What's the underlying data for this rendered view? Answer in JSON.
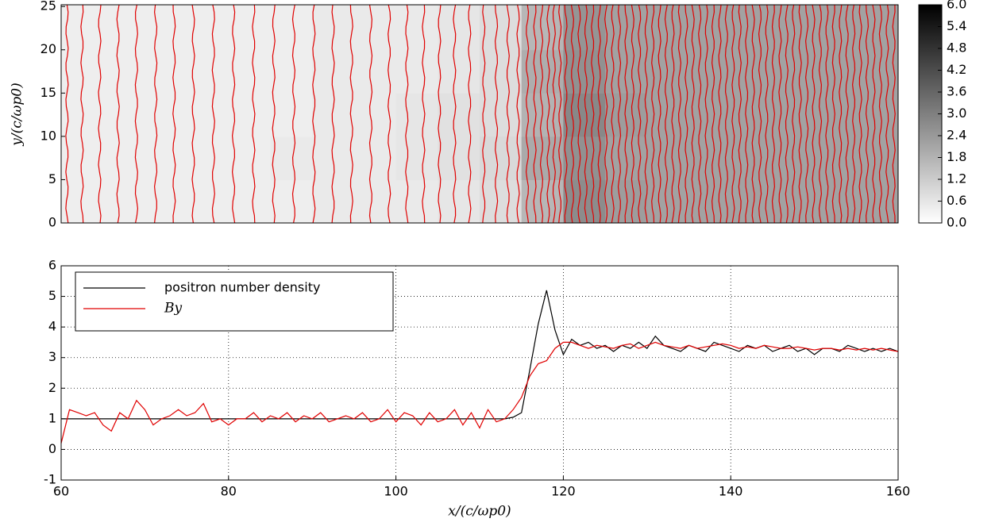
{
  "chart_data": [
    {
      "type": "heatmap",
      "ylabel": "y/(c/ωp0)",
      "xlim": [
        60,
        160
      ],
      "ylim": [
        0,
        25.2
      ],
      "yticks": [
        0,
        5,
        10,
        15,
        20,
        25
      ],
      "xbins": [
        60,
        65,
        70,
        75,
        80,
        85,
        90,
        95,
        100,
        105,
        110,
        115,
        120,
        125,
        130,
        135,
        140,
        145,
        150,
        155,
        160
      ],
      "ybins": [
        0,
        5,
        10,
        15,
        20,
        25.2
      ],
      "z": [
        [
          0.4,
          0.4,
          0.4,
          0.4,
          0.4,
          0.4,
          0.5,
          0.5,
          0.5,
          0.6,
          0.8,
          1.7,
          2.7,
          2.3,
          2.2,
          2.2,
          2.2,
          2.2,
          2.2,
          2.2
        ],
        [
          0.4,
          0.4,
          0.4,
          0.4,
          0.4,
          0.5,
          0.5,
          0.5,
          0.6,
          0.7,
          0.9,
          2.0,
          2.6,
          2.2,
          2.2,
          2.2,
          2.2,
          2.2,
          2.2,
          2.2
        ],
        [
          0.4,
          0.4,
          0.4,
          0.4,
          0.4,
          0.4,
          0.5,
          0.5,
          0.6,
          0.7,
          0.8,
          1.8,
          2.8,
          2.3,
          2.2,
          2.2,
          2.2,
          2.2,
          2.2,
          2.2
        ],
        [
          0.4,
          0.4,
          0.4,
          0.4,
          0.4,
          0.4,
          0.5,
          0.5,
          0.5,
          0.6,
          0.8,
          1.9,
          2.6,
          2.2,
          2.2,
          2.2,
          2.2,
          2.2,
          2.2,
          2.2
        ],
        [
          0.4,
          0.4,
          0.4,
          0.4,
          0.4,
          0.4,
          0.5,
          0.5,
          0.5,
          0.6,
          0.8,
          1.7,
          2.5,
          2.2,
          2.2,
          2.2,
          2.2,
          2.2,
          2.2,
          2.2
        ]
      ],
      "colorbar": {
        "lim": [
          0,
          6
        ],
        "ticks": [
          {
            "value": 0,
            "label": "0.0"
          },
          0.6,
          1.2,
          1.8,
          2.4,
          {
            "value": 3,
            "label": "3.0"
          },
          3.6,
          4.2,
          4.8,
          5.4,
          {
            "value": 6,
            "label": "6.0"
          }
        ]
      },
      "contours": {
        "color": "#e00000",
        "x": [
          60.7,
          62.5,
          64.6,
          66.8,
          69,
          71.3,
          73.5,
          75.8,
          78.2,
          80.6,
          83,
          85.4,
          87.8,
          90.2,
          92.5,
          94.7,
          97,
          99.2,
          101.3,
          103.3,
          105.2,
          107,
          108.8,
          110.5,
          112,
          113.4,
          114.6,
          115.7,
          116.6,
          117.4,
          118.2,
          118.9,
          119.6,
          120.3,
          121.1,
          121.9,
          122.7,
          123.5,
          124.3,
          125.1,
          125.9,
          126.7,
          127.5,
          128.3,
          129.1,
          129.9,
          130.7,
          131.5,
          132.3,
          133.1,
          133.9,
          134.7,
          135.5,
          136.3,
          137.1,
          137.9,
          138.7,
          139.5,
          140.3,
          141.1,
          141.9,
          142.7,
          143.5,
          144.3,
          145.1,
          145.9,
          146.7,
          147.5,
          148.3,
          149.1,
          149.9,
          150.7,
          151.5,
          152.3,
          153.1,
          153.9,
          154.7,
          155.5,
          156.3,
          157.1,
          157.9,
          158.7,
          159.5
        ]
      }
    },
    {
      "type": "line",
      "xlabel": "x/(c/ωp0)",
      "xlim": [
        60,
        160
      ],
      "ylim": [
        -1,
        6
      ],
      "xticks": [
        60,
        80,
        100,
        120,
        140,
        160
      ],
      "yticks": [
        -1,
        0,
        1,
        2,
        3,
        4,
        5,
        6
      ],
      "grid": true,
      "legend": "upper left",
      "x": [
        60,
        61,
        62,
        63,
        64,
        65,
        66,
        67,
        68,
        69,
        70,
        71,
        72,
        73,
        74,
        75,
        76,
        77,
        78,
        79,
        80,
        81,
        82,
        83,
        84,
        85,
        86,
        87,
        88,
        89,
        90,
        91,
        92,
        93,
        94,
        95,
        96,
        97,
        98,
        99,
        100,
        101,
        102,
        103,
        104,
        105,
        106,
        107,
        108,
        109,
        110,
        111,
        112,
        113,
        114,
        115,
        116,
        117,
        118,
        119,
        120,
        121,
        122,
        123,
        124,
        125,
        126,
        127,
        128,
        129,
        130,
        131,
        132,
        133,
        134,
        135,
        136,
        137,
        138,
        139,
        140,
        141,
        142,
        143,
        144,
        145,
        146,
        147,
        148,
        149,
        150,
        151,
        152,
        153,
        154,
        155,
        156,
        157,
        158,
        159,
        160
      ],
      "series": [
        {
          "name": "positron number density",
          "color": "#000000",
          "values": [
            1,
            1,
            1,
            1,
            1,
            1,
            1,
            1,
            1,
            1,
            1,
            1,
            1,
            1,
            1,
            1,
            1,
            1,
            1,
            1,
            1,
            1,
            1,
            1,
            1,
            1,
            1,
            1,
            1,
            1,
            1,
            1,
            1,
            1,
            1,
            1,
            1,
            1,
            1,
            1,
            1,
            1,
            1,
            1,
            1,
            1,
            1,
            1,
            1,
            1,
            1,
            1,
            1,
            1,
            1.05,
            1.2,
            2.6,
            4.1,
            5.2,
            3.9,
            3.1,
            3.6,
            3.4,
            3.5,
            3.3,
            3.4,
            3.2,
            3.4,
            3.3,
            3.5,
            3.3,
            3.7,
            3.4,
            3.3,
            3.2,
            3.4,
            3.3,
            3.2,
            3.5,
            3.4,
            3.3,
            3.2,
            3.4,
            3.3,
            3.4,
            3.2,
            3.3,
            3.4,
            3.2,
            3.3,
            3.1,
            3.3,
            3.3,
            3.2,
            3.4,
            3.3,
            3.2,
            3.3,
            3.2,
            3.3,
            3.2
          ]
        },
        {
          "name": "By",
          "color": "#e00000",
          "values": [
            0.2,
            1.3,
            1.2,
            1.1,
            1.2,
            0.8,
            0.6,
            1.2,
            1.0,
            1.6,
            1.3,
            0.8,
            1.0,
            1.1,
            1.3,
            1.1,
            1.2,
            1.5,
            0.9,
            1.0,
            0.8,
            1.0,
            1.0,
            1.2,
            0.9,
            1.1,
            1.0,
            1.2,
            0.9,
            1.1,
            1.0,
            1.2,
            0.9,
            1.0,
            1.1,
            1.0,
            1.2,
            0.9,
            1.0,
            1.3,
            0.9,
            1.2,
            1.1,
            0.8,
            1.2,
            0.9,
            1.0,
            1.3,
            0.8,
            1.2,
            0.7,
            1.3,
            0.9,
            1.0,
            1.3,
            1.7,
            2.4,
            2.8,
            2.9,
            3.3,
            3.5,
            3.5,
            3.4,
            3.3,
            3.4,
            3.35,
            3.3,
            3.4,
            3.45,
            3.3,
            3.4,
            3.5,
            3.4,
            3.35,
            3.3,
            3.4,
            3.3,
            3.35,
            3.4,
            3.45,
            3.4,
            3.3,
            3.35,
            3.3,
            3.4,
            3.35,
            3.3,
            3.3,
            3.35,
            3.3,
            3.25,
            3.3,
            3.3,
            3.25,
            3.3,
            3.25,
            3.3,
            3.25,
            3.3,
            3.25,
            3.2
          ]
        }
      ]
    }
  ]
}
